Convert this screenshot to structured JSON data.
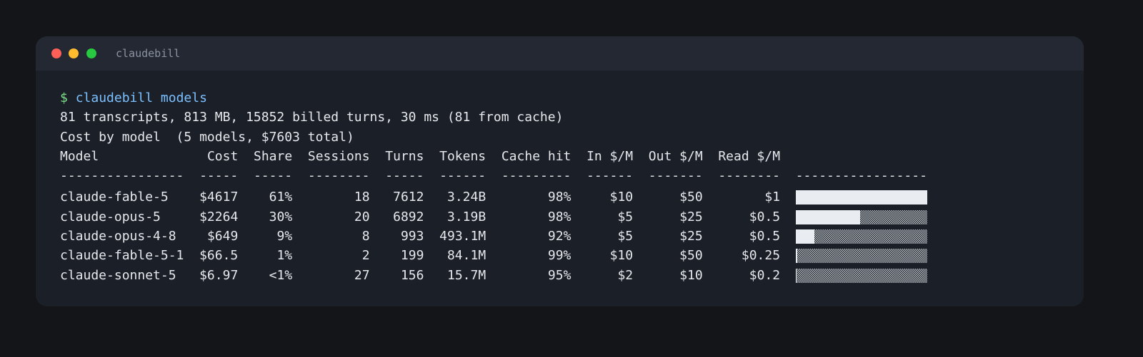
{
  "window": {
    "title": "claudebill"
  },
  "terminal": {
    "prompt": "$",
    "command": "claudebill models",
    "summary": "81 transcripts, 813 MB, 15852 billed turns, 30 ms (81 from cache)",
    "heading": "Cost by model  (5 models, $7603 total)",
    "table": {
      "columns": [
        "Model",
        "Cost",
        "Share",
        "Sessions",
        "Turns",
        "Tokens",
        "Cache hit",
        "In $/M",
        "Out $/M",
        "Read $/M"
      ],
      "separators": [
        "----------------",
        "-----",
        "-----",
        "--------",
        "-----",
        "------",
        "---------",
        "------",
        "-------",
        "--------",
        "-----------------"
      ],
      "rows": [
        {
          "cells": [
            "claude-fable-5",
            {
              "value": 4617,
              "label": "$4617"
            },
            "61%",
            18,
            7612,
            "3.24B",
            "98%",
            "$10",
            "$50",
            "$1"
          ]
        },
        {
          "cells": [
            "claude-opus-5",
            {
              "value": 2264,
              "label": "$2264"
            },
            "30%",
            20,
            6892,
            "3.19B",
            "98%",
            "$5",
            "$25",
            "$0.5"
          ]
        },
        {
          "cells": [
            "claude-opus-4-8",
            {
              "value": 649,
              "label": "$649"
            },
            "9%",
            8,
            993,
            "493.1M",
            "92%",
            "$5",
            "$25",
            "$0.5"
          ]
        },
        {
          "cells": [
            "claude-fable-5-1",
            {
              "value": 66.5,
              "label": "$66.5"
            },
            "1%",
            2,
            199,
            "84.1M",
            "99%",
            "$10",
            "$50",
            "$0.25"
          ]
        },
        {
          "cells": [
            "claude-sonnet-5",
            {
              "value": 6.97,
              "label": "$6.97"
            },
            "<1%",
            27,
            156,
            "15.7M",
            "95%",
            "$2",
            "$10",
            "$0.2"
          ]
        }
      ]
    }
  }
}
